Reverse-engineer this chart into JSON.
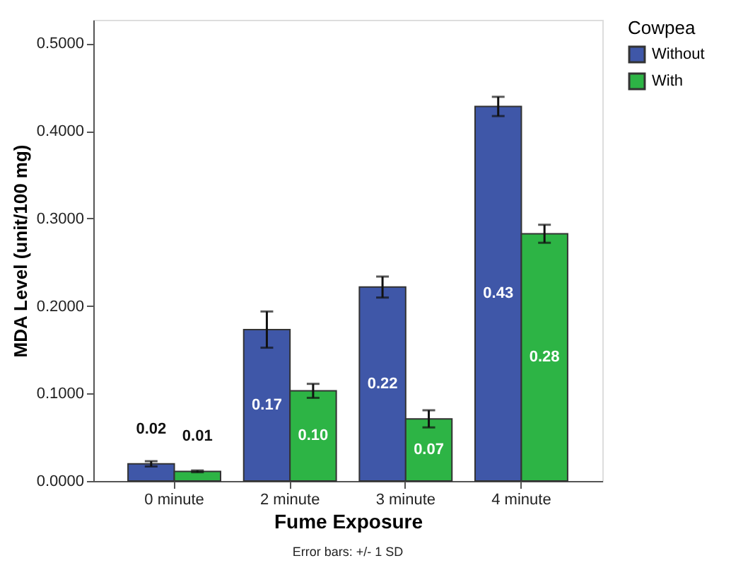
{
  "chart_data": {
    "type": "bar",
    "xlabel": "Fume Exposure",
    "ylabel": "MDA Level (unit/100 mg)",
    "categories": [
      "0 minute",
      "2 minute",
      "3 minute",
      "4 minute"
    ],
    "series": [
      {
        "name": "Without",
        "color": "#3f57a8",
        "values": [
          0.0196,
          0.173,
          0.2216,
          0.428
        ],
        "errors": [
          0.003,
          0.0207,
          0.012,
          0.011
        ],
        "value_labels": [
          "0.02",
          "0.17",
          "0.22",
          "0.43"
        ]
      },
      {
        "name": "With",
        "color": "#2db445",
        "values": [
          0.011,
          0.103,
          0.071,
          0.2825
        ],
        "errors": [
          0.001,
          0.008,
          0.0098,
          0.0103
        ],
        "value_labels": [
          "0.01",
          "0.10",
          "0.07",
          "0.28"
        ]
      }
    ],
    "legend_title": "Cowpea",
    "legend": "top right",
    "ylim": [
      0,
      0.527
    ],
    "yticks": [
      {
        "value": 0,
        "label": "0.0000"
      },
      {
        "value": 0.1,
        "label": "0.1000"
      },
      {
        "value": 0.2,
        "label": "0.2000"
      },
      {
        "value": 0.3,
        "label": "0.3000"
      },
      {
        "value": 0.4,
        "label": "0.4000"
      },
      {
        "value": 0.5,
        "label": "0.5000"
      }
    ],
    "grid": false,
    "annotations": [
      "Error bars: +/- 1 SD"
    ]
  }
}
